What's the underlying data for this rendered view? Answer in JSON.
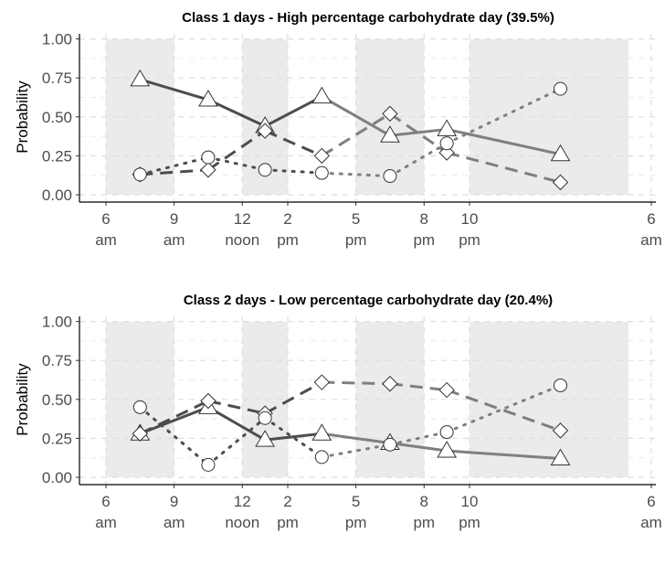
{
  "chart_data": [
    {
      "type": "line",
      "title": "Class 1 days - High percentage carbohydrate day (39.5%)",
      "xlabel": "",
      "ylabel": "Probability",
      "ylim": [
        0,
        1
      ],
      "yticks": [
        "0.00",
        "0.25",
        "0.50",
        "0.75",
        "1.00"
      ],
      "xticks": [
        {
          "hour": 6,
          "top": "6",
          "bottom": "am"
        },
        {
          "hour": 9,
          "top": "9",
          "bottom": "am"
        },
        {
          "hour": 12,
          "top": "12",
          "bottom": "noon"
        },
        {
          "hour": 14,
          "top": "2",
          "bottom": "pm"
        },
        {
          "hour": 17,
          "top": "5",
          "bottom": "pm"
        },
        {
          "hour": 20,
          "top": "8",
          "bottom": "pm"
        },
        {
          "hour": 22,
          "top": "10",
          "bottom": "pm"
        },
        {
          "hour": 30,
          "top": "6",
          "bottom": "am"
        }
      ],
      "shaded_periods": [
        [
          6,
          9
        ],
        [
          12,
          14
        ],
        [
          17,
          20
        ],
        [
          22,
          29
        ]
      ],
      "x": [
        7.5,
        10.5,
        13,
        15.5,
        18.5,
        21,
        26
      ],
      "series": [
        {
          "marker": "triangle",
          "linestyle": "solid",
          "values": [
            0.74,
            0.61,
            0.44,
            0.63,
            0.38,
            0.42,
            0.26
          ]
        },
        {
          "marker": "diamond",
          "linestyle": "dashed",
          "values": [
            0.13,
            0.16,
            0.41,
            0.25,
            0.52,
            0.27,
            0.08
          ]
        },
        {
          "marker": "circle",
          "linestyle": "dotted",
          "values": [
            0.13,
            0.24,
            0.16,
            0.14,
            0.12,
            0.33,
            0.68
          ]
        }
      ],
      "grid": true
    },
    {
      "type": "line",
      "title": "Class 2 days - Low percentage carbohydrate day (20.4%)",
      "xlabel": "",
      "ylabel": "Probability",
      "ylim": [
        0,
        1
      ],
      "yticks": [
        "0.00",
        "0.25",
        "0.50",
        "0.75",
        "1.00"
      ],
      "xticks": [
        {
          "hour": 6,
          "top": "6",
          "bottom": "am"
        },
        {
          "hour": 9,
          "top": "9",
          "bottom": "am"
        },
        {
          "hour": 12,
          "top": "12",
          "bottom": "noon"
        },
        {
          "hour": 14,
          "top": "2",
          "bottom": "pm"
        },
        {
          "hour": 17,
          "top": "5",
          "bottom": "pm"
        },
        {
          "hour": 20,
          "top": "8",
          "bottom": "pm"
        },
        {
          "hour": 22,
          "top": "10",
          "bottom": "pm"
        },
        {
          "hour": 30,
          "top": "6",
          "bottom": "am"
        }
      ],
      "shaded_periods": [
        [
          6,
          9
        ],
        [
          12,
          14
        ],
        [
          17,
          20
        ],
        [
          22,
          29
        ]
      ],
      "x": [
        7.5,
        10.5,
        13,
        15.5,
        18.5,
        21,
        26
      ],
      "series": [
        {
          "marker": "triangle",
          "linestyle": "solid",
          "values": [
            0.28,
            0.45,
            0.24,
            0.28,
            0.22,
            0.17,
            0.12
          ]
        },
        {
          "marker": "diamond",
          "linestyle": "dashed",
          "values": [
            0.28,
            0.49,
            0.41,
            0.61,
            0.6,
            0.56,
            0.3
          ]
        },
        {
          "marker": "circle",
          "linestyle": "dotted",
          "values": [
            0.45,
            0.08,
            0.38,
            0.13,
            0.21,
            0.29,
            0.59
          ]
        }
      ],
      "grid": true
    }
  ],
  "colors": {
    "shade": "#ebebeb",
    "grid": "#ebebeb",
    "axis": "#000000",
    "tick_text": "#4d4d4d",
    "line_early": "#4d4d4d",
    "line_late": "#7f7f7f",
    "marker_fill": "#ffffff",
    "marker_stroke": "#333333"
  }
}
